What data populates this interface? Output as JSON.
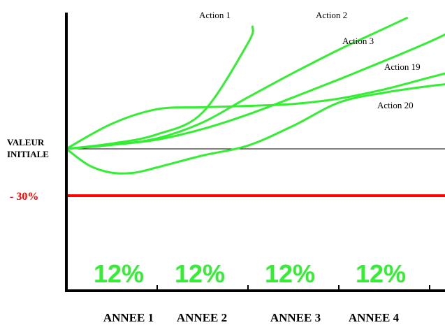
{
  "chart_data": {
    "type": "line",
    "title": "",
    "xlabel": "",
    "ylabel": "",
    "grid": false,
    "categories": [
      "ANNEE 1",
      "ANNEE 2",
      "ANNEE 3",
      "ANNEE 4"
    ],
    "interval_labels": [
      "12%",
      "12%",
      "12%",
      "12%"
    ],
    "baseline_label": "VALEUR INITIALE",
    "threshold": {
      "label": "- 30%",
      "value": -30,
      "color": "#ff0000"
    },
    "series_color": "#33ee33",
    "series": [
      {
        "name": "Action 1",
        "x": [
          0,
          0.5,
          1.0,
          1.5,
          2.0,
          2.05
        ],
        "y": [
          0,
          8,
          22,
          55,
          160,
          185
        ]
      },
      {
        "name": "Action 2",
        "x": [
          0,
          0.5,
          1.0,
          1.5,
          2.0,
          2.5,
          3.0,
          3.5,
          3.75
        ],
        "y": [
          0,
          6,
          16,
          40,
          78,
          115,
          150,
          182,
          198
        ]
      },
      {
        "name": "Action 3",
        "x": [
          0,
          0.5,
          1.0,
          1.5,
          2.0,
          2.5,
          3.0,
          3.5,
          4.0,
          4.2
        ],
        "y": [
          0,
          6,
          14,
          30,
          52,
          78,
          105,
          133,
          162,
          175
        ]
      },
      {
        "name": "Action 19",
        "x": [
          0,
          0.5,
          1.0,
          1.5,
          2.0,
          2.5,
          3.0,
          3.5,
          4.0,
          4.2
        ],
        "y": [
          0,
          38,
          60,
          63,
          65,
          68,
          76,
          90,
          108,
          115
        ]
      },
      {
        "name": "Action 20",
        "x": [
          0,
          0.25,
          0.5,
          0.75,
          1.0,
          1.5,
          2.0,
          2.5,
          3.0,
          3.5,
          4.0,
          4.2
        ],
        "y": [
          0,
          -25,
          -36,
          -36,
          -28,
          -10,
          5,
          35,
          70,
          85,
          95,
          98
        ]
      }
    ]
  }
}
